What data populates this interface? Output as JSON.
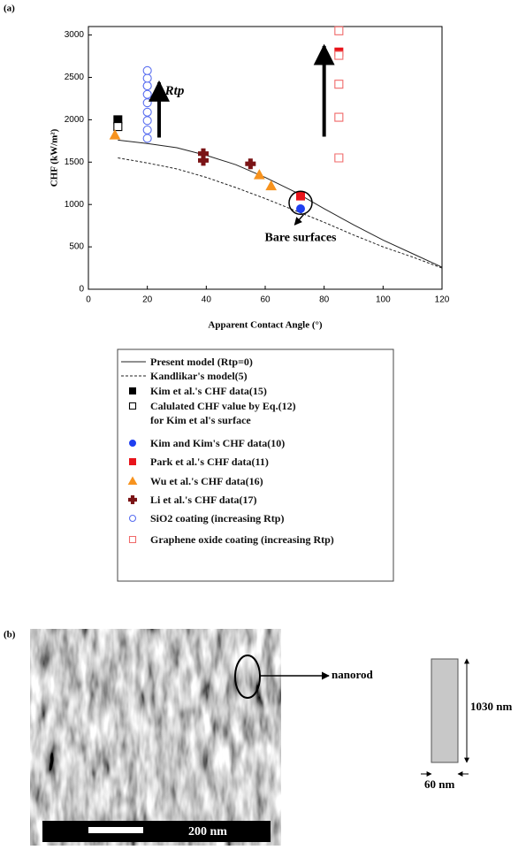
{
  "panel_labels": [
    "(a)",
    "(b)"
  ],
  "chart_data": {
    "type": "scatter",
    "xlabel": "Apparent Contact Angle (°)",
    "ylabel": "CHF (kW/m²)",
    "xlim": [
      0,
      120
    ],
    "xticks": [
      0,
      20,
      40,
      60,
      80,
      100,
      120
    ],
    "ylim": [
      0,
      3100
    ],
    "yticks": [
      0,
      500,
      1000,
      1500,
      2000,
      2500,
      3000
    ],
    "series": [
      {
        "name": "Present model (Rtp=0)",
        "type": "line",
        "color": "#222222",
        "dash": false,
        "x": [
          10,
          20,
          30,
          40,
          50,
          60,
          70,
          80,
          90,
          100,
          110,
          120
        ],
        "values": [
          1760,
          1720,
          1670,
          1580,
          1470,
          1320,
          1150,
          950,
          760,
          580,
          420,
          260
        ]
      },
      {
        "name": "Kandlikar's model(5)",
        "type": "line",
        "color": "#222222",
        "dash": true,
        "x": [
          10,
          20,
          30,
          40,
          50,
          60,
          70,
          80,
          90,
          100,
          110,
          120
        ],
        "values": [
          1550,
          1490,
          1420,
          1320,
          1200,
          1070,
          930,
          790,
          640,
          500,
          380,
          250
        ]
      },
      {
        "name": "Kim et al.'s CHF data(15)",
        "type": "scatter",
        "marker": "square",
        "filled": true,
        "color": "#000000",
        "x": [
          10
        ],
        "values": [
          2000
        ]
      },
      {
        "name": "Calulated CHF value by Eq.(12)\nfor Kim et al's surface",
        "type": "scatter",
        "marker": "square",
        "filled": false,
        "color": "#000000",
        "x": [
          10
        ],
        "values": [
          1920
        ]
      },
      {
        "name": "Kim and Kim's CHF data(10)",
        "type": "scatter",
        "marker": "circle",
        "filled": true,
        "color": "#1f3ff0",
        "x": [
          20,
          72
        ],
        "values": [
          2400,
          950
        ]
      },
      {
        "name": "Park et al.'s CHF data(11)",
        "type": "scatter",
        "marker": "square",
        "filled": true,
        "color": "#e8141b",
        "x": [
          72,
          85
        ],
        "values": [
          1100,
          2800
        ]
      },
      {
        "name": "Wu et al.'s CHF data(16)",
        "type": "scatter",
        "marker": "triangle",
        "filled": true,
        "color": "#f7931e",
        "x": [
          9,
          58,
          62
        ],
        "values": [
          1820,
          1350,
          1220
        ]
      },
      {
        "name": "Li et al.'s CHF data(17)",
        "type": "scatter",
        "marker": "plus",
        "filled": true,
        "color": "#7b1416",
        "x": [
          39,
          39,
          55
        ],
        "values": [
          1600,
          1520,
          1480
        ]
      },
      {
        "name": "SiO2 coating (increasing Rtp)",
        "type": "scatter",
        "marker": "circle",
        "filled": false,
        "color": "#5a6ff0",
        "x": [
          20,
          20,
          20,
          20,
          20,
          20,
          20,
          20,
          20
        ],
        "values": [
          1780,
          1880,
          1990,
          2090,
          2200,
          2300,
          2400,
          2490,
          2580
        ]
      },
      {
        "name": "Graphene oxide coating (increasing Rtp)",
        "type": "scatter",
        "marker": "square",
        "filled": false,
        "color": "#f06a6a",
        "x": [
          85,
          85,
          85,
          85,
          85
        ],
        "values": [
          1550,
          2030,
          2420,
          2760,
          3050
        ]
      }
    ],
    "annotations": {
      "rtp": "Rtp",
      "bare": "Bare surfaces"
    }
  },
  "figure_b": {
    "nanorod": "nanorod",
    "scale_bar": "200 nm",
    "height": "1030 nm",
    "width": "60 nm"
  }
}
